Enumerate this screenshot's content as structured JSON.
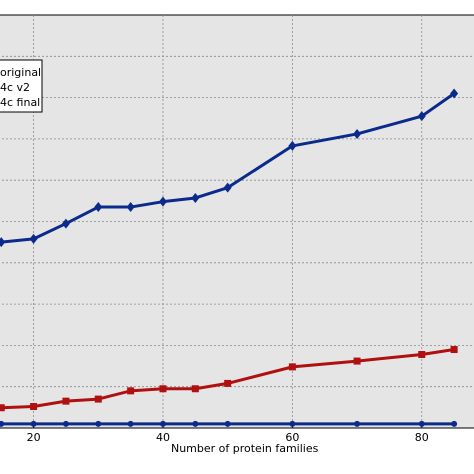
{
  "chart_data": {
    "type": "line",
    "xlabel": "Number of protein families",
    "x_ticks": [
      20,
      40,
      60,
      80
    ],
    "xlim": [
      14.5,
      89
    ],
    "ylim": [
      0,
      100
    ],
    "grid": true,
    "legend": {
      "placement": "top-left",
      "entries": [
        "original",
        "4c v2",
        "4c final"
      ]
    },
    "series": [
      {
        "name": "original",
        "color": "#0a2a8c",
        "marker": "circle",
        "x": [
          15,
          20,
          25,
          30,
          35,
          40,
          45,
          50,
          60,
          70,
          80,
          85
        ],
        "y": [
          1.0,
          1.0,
          1.0,
          1.0,
          1.0,
          1.0,
          1.0,
          1.0,
          1.0,
          1.0,
          1.0,
          1.0
        ]
      },
      {
        "name": "4c v2",
        "color": "#b01010",
        "marker": "square",
        "x": [
          15,
          20,
          25,
          30,
          35,
          40,
          45,
          50,
          60,
          70,
          80,
          85
        ],
        "y": [
          4.9,
          5.2,
          6.5,
          7.0,
          9.0,
          9.5,
          9.5,
          10.8,
          14.8,
          16.2,
          17.8,
          19.0
        ]
      },
      {
        "name": "4c final",
        "color": "#0a2a8c",
        "marker": "diamond",
        "x": [
          15,
          20,
          25,
          30,
          35,
          40,
          45,
          50,
          60,
          70,
          80,
          85
        ],
        "y": [
          45.0,
          45.8,
          49.5,
          53.5,
          53.5,
          54.8,
          55.7,
          58.2,
          68.3,
          71.2,
          75.5,
          81.0
        ]
      }
    ]
  }
}
